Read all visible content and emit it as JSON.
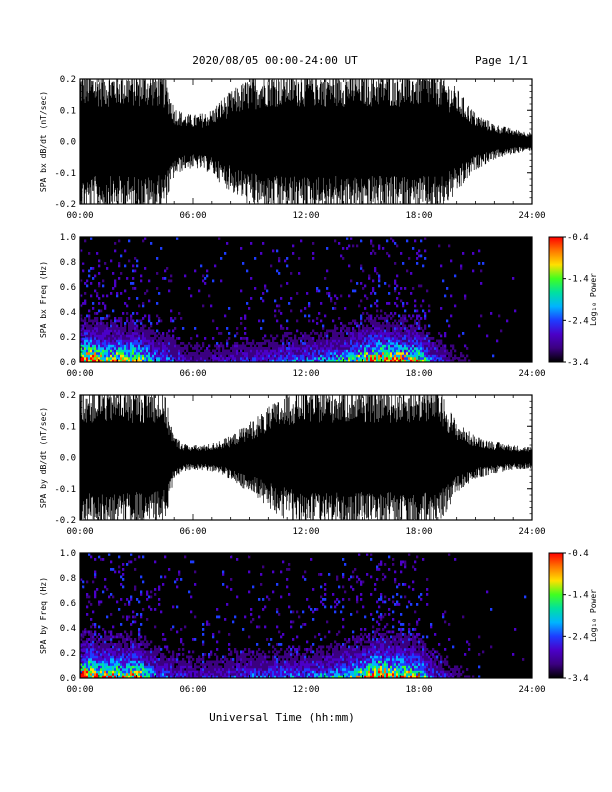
{
  "header": {
    "title": "2020/08/05  00:00-24:00 UT",
    "page": "Page 1/1"
  },
  "xlabel": "Universal Time (hh:mm)",
  "colorbar_label": "Log₁₀ Power",
  "colors": {
    "background": "#000000",
    "trace": "#000000",
    "colormap": [
      "#000000",
      "#3b0080",
      "#4b00c8",
      "#1e3cff",
      "#00b4ff",
      "#00e0a0",
      "#40ff20",
      "#ffe000",
      "#ff7800",
      "#ff0000"
    ]
  },
  "chart_data": [
    {
      "type": "line",
      "id": "bx-dbdt",
      "ylabel": "SPA bx dB/dt (nT/sec)",
      "ylim": [
        -0.2,
        0.2
      ],
      "xlim": [
        0,
        24
      ],
      "y_tick_labels": [
        "-0.2",
        "-0.1",
        "0.0",
        "0.1",
        "0.2"
      ],
      "x_tick_labels": [
        "00:00",
        "06:00",
        "12:00",
        "18:00",
        "24:00"
      ],
      "series": [
        {
          "x": [
            0,
            1,
            2,
            3,
            4,
            4.5,
            5,
            5.5,
            6,
            6.5,
            7,
            7.5,
            8,
            9,
            10,
            11,
            12,
            13,
            14,
            15,
            16,
            17,
            18,
            19,
            20,
            21,
            22,
            23,
            24
          ],
          "envelope": [
            0.2,
            0.2,
            0.2,
            0.2,
            0.2,
            0.19,
            0.1,
            0.08,
            0.075,
            0.08,
            0.09,
            0.12,
            0.14,
            0.18,
            0.2,
            0.2,
            0.2,
            0.2,
            0.2,
            0.2,
            0.2,
            0.2,
            0.2,
            0.2,
            0.15,
            0.08,
            0.05,
            0.035,
            0.025
          ]
        }
      ]
    },
    {
      "type": "heatmap",
      "id": "bx-freq",
      "ylabel": "SPA bx Freq (Hz)",
      "ylim": [
        0.0,
        1.0
      ],
      "xlim": [
        0,
        24
      ],
      "y_tick_labels": [
        "0.0",
        "0.2",
        "0.4",
        "0.6",
        "0.8",
        "1.0"
      ],
      "x_tick_labels": [
        "00:00",
        "06:00",
        "12:00",
        "18:00",
        "24:00"
      ],
      "colorbar": {
        "range": [
          -3.4,
          -0.4
        ],
        "tick_labels": [
          "-0.4",
          "-1.4",
          "-2.4",
          "-3.4"
        ]
      },
      "activity": {
        "x": [
          0,
          0.5,
          1,
          1.5,
          2,
          2.5,
          3,
          3.5,
          4,
          5,
          6,
          7,
          8,
          9,
          10,
          11,
          12,
          13,
          14,
          15,
          15.5,
          16,
          16.5,
          17,
          17.5,
          18,
          18.5,
          19,
          20,
          21,
          22,
          23,
          24
        ],
        "level": [
          0.9,
          1.0,
          0.85,
          0.75,
          0.8,
          0.75,
          0.85,
          0.6,
          0.45,
          0.3,
          0.2,
          0.2,
          0.25,
          0.3,
          0.3,
          0.35,
          0.4,
          0.45,
          0.55,
          0.75,
          0.9,
          0.95,
          0.85,
          0.9,
          0.8,
          0.7,
          0.45,
          0.3,
          0.15,
          0.08,
          0.05,
          0.04,
          0.03
        ]
      }
    },
    {
      "type": "line",
      "id": "by-dbdt",
      "ylabel": "SPA by dB/dt (nT/sec)",
      "ylim": [
        -0.2,
        0.2
      ],
      "xlim": [
        0,
        24
      ],
      "y_tick_labels": [
        "-0.2",
        "-0.1",
        "0.0",
        "0.1",
        "0.2"
      ],
      "x_tick_labels": [
        "00:00",
        "06:00",
        "12:00",
        "18:00",
        "24:00"
      ],
      "series": [
        {
          "x": [
            0,
            1,
            2,
            3,
            4,
            4.5,
            5,
            5.5,
            6,
            6.5,
            7,
            7.5,
            8,
            9,
            10,
            11,
            12,
            13,
            14,
            15,
            16,
            17,
            18,
            19,
            20,
            21,
            22,
            23,
            24
          ],
          "envelope": [
            0.2,
            0.2,
            0.2,
            0.2,
            0.2,
            0.18,
            0.06,
            0.04,
            0.035,
            0.035,
            0.04,
            0.05,
            0.06,
            0.1,
            0.14,
            0.18,
            0.2,
            0.2,
            0.2,
            0.2,
            0.2,
            0.2,
            0.2,
            0.2,
            0.1,
            0.06,
            0.045,
            0.035,
            0.03
          ]
        }
      ]
    },
    {
      "type": "heatmap",
      "id": "by-freq",
      "ylabel": "SPA by Freq (Hz)",
      "ylim": [
        0.0,
        1.0
      ],
      "xlim": [
        0,
        24
      ],
      "y_tick_labels": [
        "0.0",
        "0.2",
        "0.4",
        "0.6",
        "0.8",
        "1.0"
      ],
      "x_tick_labels": [
        "00:00",
        "06:00",
        "12:00",
        "18:00",
        "24:00"
      ],
      "colorbar": {
        "range": [
          -3.4,
          -0.4
        ],
        "tick_labels": [
          "-0.4",
          "-1.4",
          "-2.4",
          "-3.4"
        ]
      },
      "activity": {
        "x": [
          0,
          0.5,
          1,
          1.5,
          2,
          2.5,
          3,
          3.5,
          4,
          5,
          6,
          7,
          8,
          9,
          10,
          11,
          12,
          13,
          14,
          15,
          15.5,
          16,
          16.5,
          17,
          17.5,
          18,
          18.5,
          19,
          20,
          21,
          22,
          23,
          24
        ],
        "level": [
          0.9,
          1.0,
          0.85,
          0.8,
          0.8,
          0.75,
          0.9,
          0.6,
          0.45,
          0.3,
          0.25,
          0.25,
          0.3,
          0.35,
          0.35,
          0.4,
          0.4,
          0.45,
          0.55,
          0.75,
          0.9,
          1.0,
          0.85,
          0.9,
          0.8,
          0.7,
          0.45,
          0.3,
          0.15,
          0.08,
          0.05,
          0.04,
          0.03
        ]
      }
    }
  ]
}
